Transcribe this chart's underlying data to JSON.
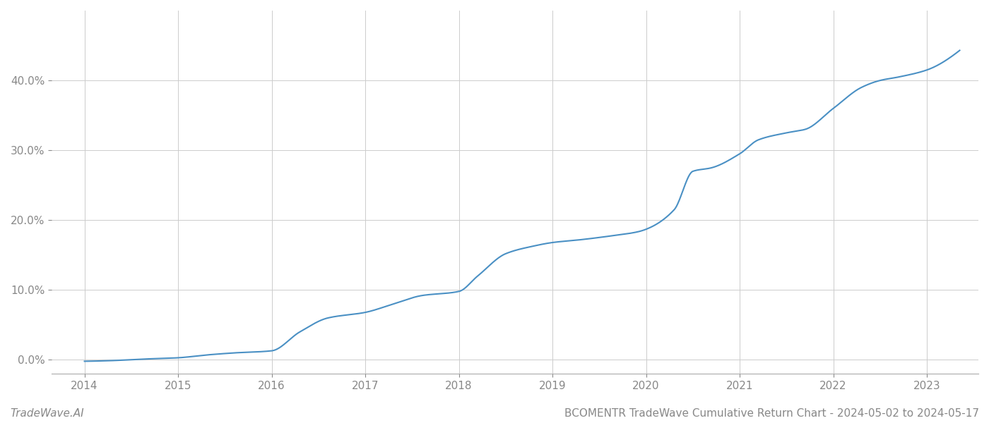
{
  "title": "BCOMENTR TradeWave Cumulative Return Chart - 2024-05-02 to 2024-05-17",
  "watermark": "TradeWave.AI",
  "line_color": "#4a90c4",
  "background_color": "#ffffff",
  "grid_color": "#cccccc",
  "x_years": [
    2014,
    2015,
    2016,
    2017,
    2018,
    2019,
    2020,
    2021,
    2022,
    2023
  ],
  "key_x": [
    2014.0,
    2014.3,
    2014.6,
    2015.0,
    2015.3,
    2015.6,
    2016.0,
    2016.3,
    2016.6,
    2017.0,
    2017.3,
    2017.6,
    2018.0,
    2018.2,
    2018.5,
    2018.8,
    2019.0,
    2019.3,
    2019.6,
    2019.9,
    2020.0,
    2020.3,
    2020.5,
    2020.7,
    2021.0,
    2021.2,
    2021.5,
    2021.7,
    2022.0,
    2022.3,
    2022.5,
    2022.7,
    2023.0,
    2023.35
  ],
  "key_y": [
    -0.002,
    -0.001,
    0.001,
    0.003,
    0.007,
    0.01,
    0.013,
    0.04,
    0.06,
    0.068,
    0.08,
    0.092,
    0.098,
    0.12,
    0.152,
    0.163,
    0.168,
    0.172,
    0.177,
    0.183,
    0.187,
    0.215,
    0.27,
    0.275,
    0.295,
    0.315,
    0.325,
    0.33,
    0.36,
    0.39,
    0.4,
    0.405,
    0.415,
    0.443
  ],
  "ylim": [
    -0.02,
    0.5
  ],
  "yticks": [
    0.0,
    0.1,
    0.2,
    0.3,
    0.4
  ],
  "xlim_left": 2013.65,
  "xlim_right": 2023.55,
  "title_fontsize": 11,
  "watermark_fontsize": 11,
  "tick_fontsize": 11,
  "line_width": 1.5
}
